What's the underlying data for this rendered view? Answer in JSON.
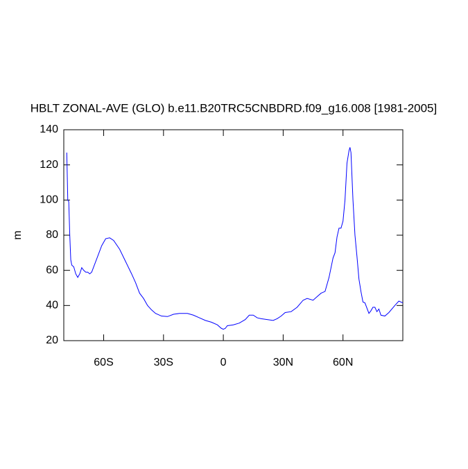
{
  "chart_data": {
    "type": "line",
    "title": "HBLT ZONAL-AVE (GLO) b.e11.B20TRC5CNBDRD.f09_g16.008 [1981-2005]",
    "y_label": "m",
    "xlim": [
      -80,
      90
    ],
    "ylim": [
      20,
      140
    ],
    "xticks": [
      {
        "value": -60,
        "label": "60S"
      },
      {
        "value": -30,
        "label": "30S"
      },
      0,
      {
        "value": 30,
        "label": "30N"
      },
      {
        "value": 60,
        "label": "60N"
      }
    ],
    "yticks": [
      20,
      40,
      60,
      80,
      100,
      120,
      140
    ],
    "series": [
      {
        "color": "#0000ff",
        "x": [
          -78.5,
          -78,
          -77.5,
          -77,
          -76.5,
          -76,
          -75,
          -74,
          -73,
          -72,
          -71,
          -70,
          -69,
          -68,
          -67,
          -66,
          -65,
          -63,
          -61,
          -59,
          -57,
          -55,
          -52,
          -49,
          -46,
          -44,
          -42,
          -40,
          -38,
          -36,
          -34,
          -31,
          -28,
          -25,
          -22,
          -18,
          -15,
          -12,
          -9,
          -6,
          -3,
          -1,
          0,
          1,
          2,
          5,
          8,
          11,
          13,
          15,
          17,
          19,
          22,
          25,
          27,
          29,
          31,
          34,
          37,
          40,
          42,
          45,
          47,
          49,
          51,
          53,
          55,
          56,
          57,
          58,
          59,
          60,
          61,
          62,
          63,
          63.5,
          64,
          65,
          66,
          67,
          68,
          69,
          70,
          71,
          73,
          74,
          75,
          76,
          77,
          78,
          79,
          81,
          83,
          86,
          88,
          90
        ],
        "values": [
          127,
          100,
          99,
          80,
          66,
          63,
          62,
          58,
          56,
          58,
          61.5,
          60,
          59,
          59,
          58,
          59,
          62,
          68,
          74,
          78,
          78.5,
          77,
          72,
          65,
          58,
          53,
          47,
          44,
          40,
          37.5,
          35.5,
          34,
          33.7,
          35,
          35.5,
          35.5,
          34.5,
          33,
          31.5,
          30.5,
          29,
          27,
          26.5,
          27,
          28.5,
          29,
          30,
          32,
          34.5,
          34.5,
          33,
          32.5,
          32,
          31.5,
          32.5,
          34,
          36,
          36.5,
          39,
          43,
          44,
          43,
          45,
          47,
          48,
          56,
          67,
          70,
          79,
          84,
          84,
          88,
          100,
          121,
          128,
          130,
          127,
          100,
          80,
          68,
          55,
          48,
          42,
          41.5,
          35.5,
          37,
          39,
          39,
          36.5,
          38,
          34.5,
          34,
          36,
          40,
          42.5,
          41.5
        ]
      }
    ]
  }
}
